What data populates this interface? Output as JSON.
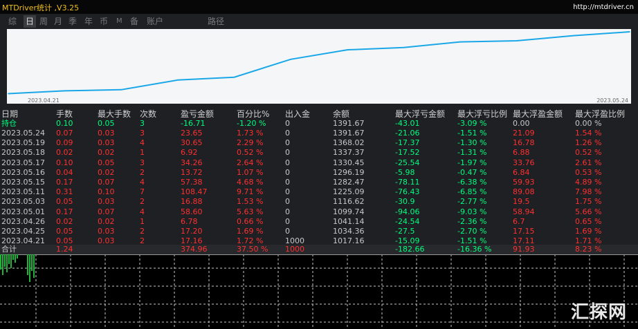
{
  "app": {
    "title": "MTDriver统计 ,V3.25",
    "site": "http://mtdriver.cn"
  },
  "tabs": [
    {
      "label": "综",
      "active": false
    },
    {
      "label": "日",
      "active": true
    },
    {
      "label": "周",
      "active": false
    },
    {
      "label": "月",
      "active": false
    },
    {
      "label": "季",
      "active": false
    },
    {
      "label": "年",
      "active": false
    },
    {
      "label": "币",
      "active": false
    },
    {
      "label": "M",
      "active": false
    },
    {
      "label": "备",
      "active": false
    },
    {
      "label": "账户",
      "active": false
    },
    {
      "label": "路径",
      "active": false
    }
  ],
  "colors": {
    "positive": "#ff3030",
    "negative": "#00ff7f",
    "line": "#1aa7e8",
    "background": "#1e2024"
  },
  "chart_data": {
    "type": "line",
    "x_start_label": "2023.04.21",
    "x_end_label": "2023.05.24",
    "x": [
      "2023.04.21",
      "2023.04.25",
      "2023.04.26",
      "2023.05.01",
      "2023.05.03",
      "2023.05.11",
      "2023.05.15",
      "2023.05.16",
      "2023.05.17",
      "2023.05.18",
      "2023.05.19",
      "2023.05.24"
    ],
    "series": [
      {
        "values": [
          1017.16,
          1034.36,
          1041.14,
          1099.74,
          1116.62,
          1225.09,
          1282.47,
          1296.19,
          1330.45,
          1337.37,
          1368.02,
          1391.67
        ]
      }
    ],
    "ylim": [
      990,
      1400
    ],
    "grid": false
  },
  "table": {
    "columns": [
      "日期",
      "手数",
      "最大手数",
      "次数",
      "盈亏金额",
      "百分比%",
      "出入金",
      "余额",
      "最大浮亏金额",
      "最大浮亏比例",
      "最大浮盈金额",
      "最大浮盈比例"
    ],
    "current": {
      "label": "持仓",
      "cells": [
        "0.10",
        "0.05",
        "3",
        "-16.71",
        "-1.20 %",
        "0",
        "1391.67",
        "-43.01",
        "-3.09 %",
        "0.00",
        "0.00 %"
      ]
    },
    "rows": [
      [
        "2023.05.24",
        "0.07",
        "0.03",
        "3",
        "23.65",
        "1.73 %",
        "0",
        "1391.67",
        "-21.06",
        "-1.51 %",
        "21.09",
        "1.54 %"
      ],
      [
        "2023.05.19",
        "0.09",
        "0.03",
        "4",
        "30.65",
        "2.29 %",
        "0",
        "1368.02",
        "-17.37",
        "-1.30 %",
        "16.78",
        "1.26 %"
      ],
      [
        "2023.05.18",
        "0.02",
        "0.02",
        "1",
        "6.92",
        "0.52 %",
        "0",
        "1337.37",
        "-17.52",
        "-1.31 %",
        "6.88",
        "0.52 %"
      ],
      [
        "2023.05.17",
        "0.10",
        "0.05",
        "3",
        "34.26",
        "2.64 %",
        "0",
        "1330.45",
        "-25.54",
        "-1.97 %",
        "33.76",
        "2.61 %"
      ],
      [
        "2023.05.16",
        "0.04",
        "0.02",
        "2",
        "13.72",
        "1.07 %",
        "0",
        "1296.19",
        "-5.98",
        "-0.47 %",
        "6.84",
        "0.53 %"
      ],
      [
        "2023.05.15",
        "0.17",
        "0.07",
        "4",
        "57.38",
        "4.68 %",
        "0",
        "1282.47",
        "-78.11",
        "-6.38 %",
        "59.93",
        "4.89 %"
      ],
      [
        "2023.05.11",
        "0.31",
        "0.10",
        "7",
        "108.47",
        "9.71 %",
        "0",
        "1225.09",
        "-76.43",
        "-6.85 %",
        "89.08",
        "7.98 %"
      ],
      [
        "2023.05.03",
        "0.05",
        "0.03",
        "2",
        "16.88",
        "1.53 %",
        "0",
        "1116.62",
        "-30.9",
        "-2.77 %",
        "19.5",
        "1.75 %"
      ],
      [
        "2023.05.01",
        "0.17",
        "0.07",
        "4",
        "58.60",
        "5.63 %",
        "0",
        "1099.74",
        "-94.06",
        "-9.03 %",
        "58.94",
        "5.66 %"
      ],
      [
        "2023.04.26",
        "0.02",
        "0.02",
        "1",
        "6.78",
        "0.66 %",
        "0",
        "1041.14",
        "-24.54",
        "-2.36 %",
        "6.7",
        "0.65 %"
      ],
      [
        "2023.04.25",
        "0.05",
        "0.03",
        "2",
        "17.20",
        "1.69 %",
        "0",
        "1034.36",
        "-27.5",
        "-2.70 %",
        "17.15",
        "1.69 %"
      ],
      [
        "2023.04.21",
        "0.05",
        "0.03",
        "2",
        "17.16",
        "1.72 %",
        "1000",
        "1017.16",
        "-15.09",
        "-1.51 %",
        "17.11",
        "1.71 %"
      ]
    ],
    "total": {
      "label": "合计",
      "cells": [
        "1.24",
        "",
        "",
        "374.96",
        "37.50 %",
        "1000",
        "",
        "-182.66",
        "-16.36 %",
        "91.93",
        "8.23 %"
      ]
    }
  },
  "watermark": "汇探网"
}
